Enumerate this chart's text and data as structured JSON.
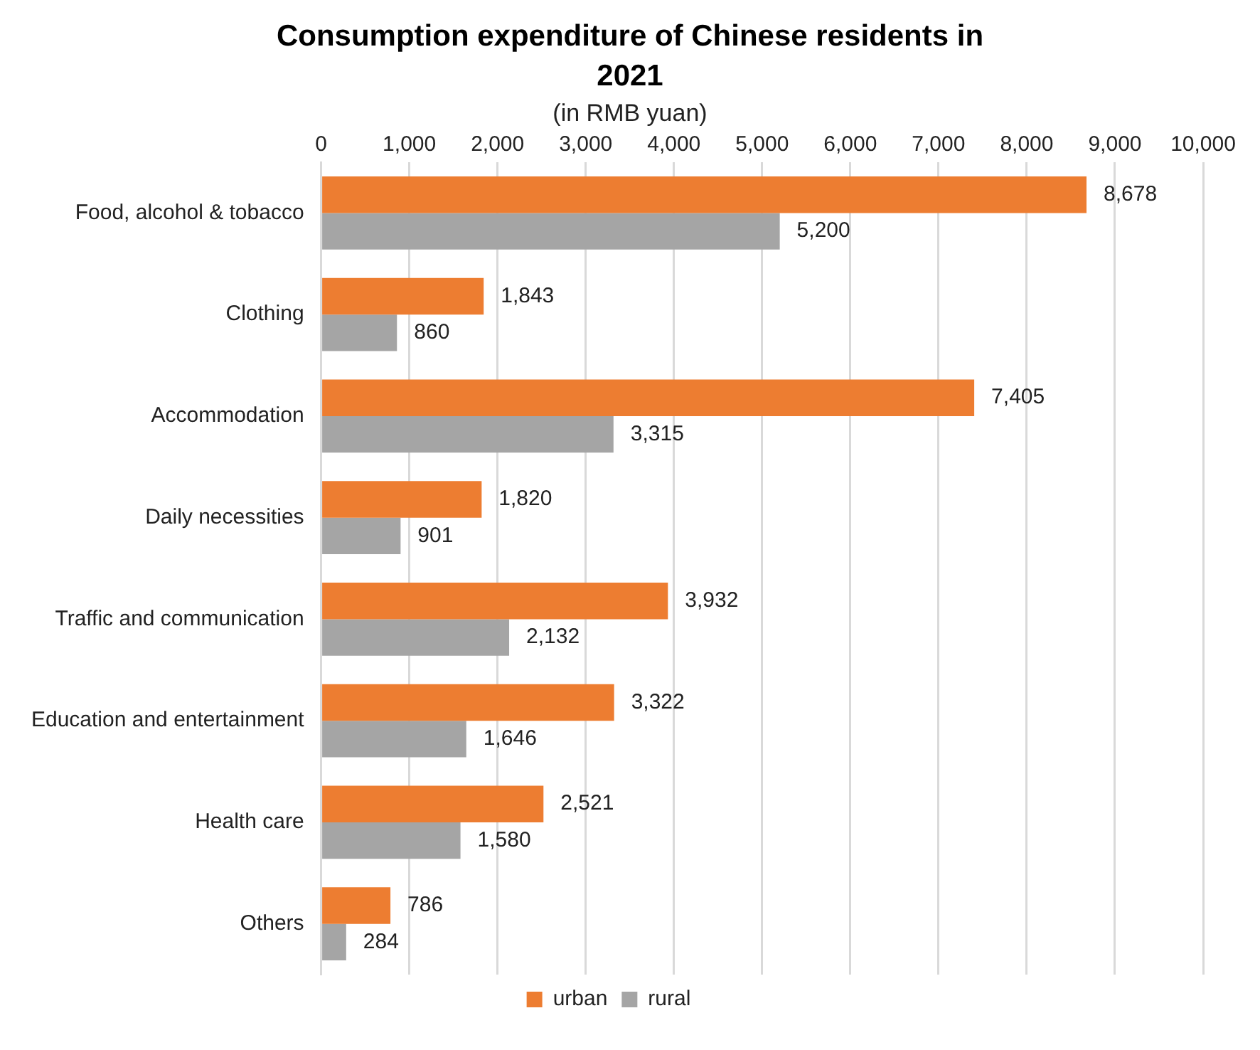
{
  "chart_data": {
    "type": "bar",
    "orientation": "horizontal",
    "title": "Consumption expenditure of Chinese residents in 2021",
    "subtitle": "(in RMB yuan)",
    "categories": [
      "Food, alcohol & tobacco",
      "Clothing",
      "Accommodation",
      "Daily necessities",
      "Traffic and communication",
      "Education and entertainment",
      "Health care",
      "Others"
    ],
    "series": [
      {
        "name": "urban",
        "color": "#ed7d31",
        "values": [
          8678,
          1843,
          7405,
          1820,
          3932,
          3322,
          2521,
          786
        ],
        "value_labels": [
          "8,678",
          "1,843",
          "7,405",
          "1,820",
          "3,932",
          "3,322",
          "2,521",
          "786"
        ]
      },
      {
        "name": "rural",
        "color": "#a5a5a5",
        "values": [
          5200,
          860,
          3315,
          901,
          2132,
          1646,
          1580,
          284
        ],
        "value_labels": [
          "5,200",
          "860",
          "3,315",
          "901",
          "2,132",
          "1,646",
          "1,580",
          "284"
        ]
      }
    ],
    "xlim": [
      0,
      10000
    ],
    "xticks": [
      0,
      {
        "value": 1000,
        "label": "1,000"
      },
      {
        "value": 2000,
        "label": "2,000"
      },
      {
        "value": 3000,
        "label": "3,000"
      },
      {
        "value": 4000,
        "label": "4,000"
      },
      {
        "value": 5000,
        "label": "5,000"
      },
      {
        "value": 6000,
        "label": "6,000"
      },
      {
        "value": 7000,
        "label": "7,000"
      },
      {
        "value": 8000,
        "label": "8,000"
      },
      {
        "value": 9000,
        "label": "9,000"
      },
      {
        "value": 10000,
        "label": "10,000"
      }
    ],
    "grid": "x",
    "legend": "bottom"
  }
}
